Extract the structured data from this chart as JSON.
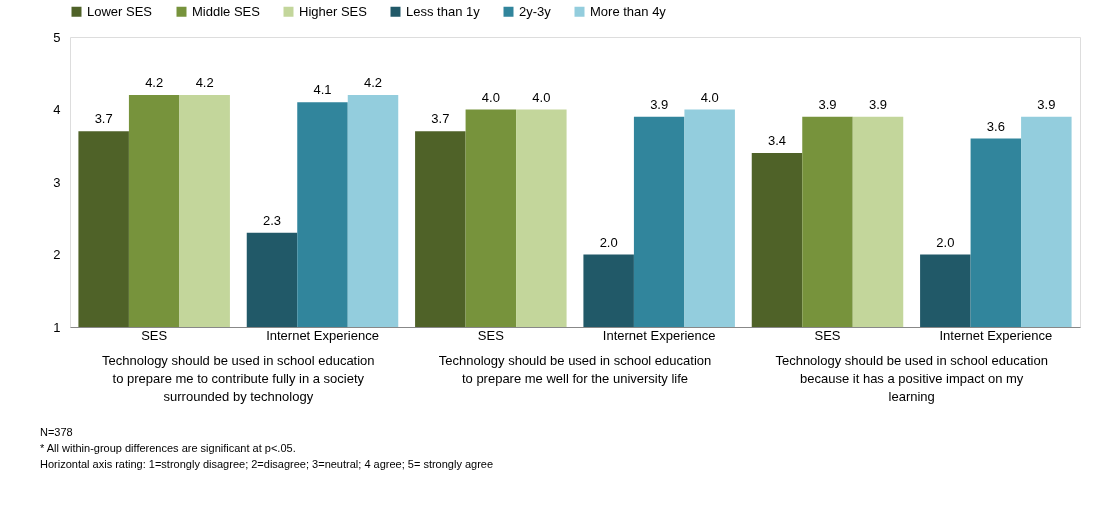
{
  "chart_data": {
    "type": "bar",
    "categories": [
      "SES",
      "Internet Experience",
      "SES",
      "Internet Experience",
      "SES",
      "Internet Experience"
    ],
    "series": [
      {
        "name": "Lower SES",
        "color": "#4f6228",
        "values": [
          3.7,
          null,
          3.7,
          null,
          3.4,
          null
        ],
        "value_labels": [
          "3.7",
          null,
          "3.7",
          null,
          "3.4",
          null
        ]
      },
      {
        "name": "Middle SES",
        "color": "#77933c",
        "values": [
          4.2,
          null,
          4.0,
          null,
          3.9,
          null
        ],
        "value_labels": [
          "4.2",
          null,
          "4.0",
          null,
          "3.9",
          null
        ]
      },
      {
        "name": "Higher SES",
        "color": "#c3d69b",
        "values": [
          4.2,
          null,
          4.0,
          null,
          3.9,
          null
        ],
        "value_labels": [
          "4.2",
          null,
          "4.0",
          null,
          "3.9",
          null
        ]
      },
      {
        "name": "Less than 1y",
        "color": "#215968",
        "values": [
          null,
          2.3,
          null,
          2.0,
          null,
          2.0
        ],
        "value_labels": [
          null,
          "2.3",
          null,
          "2.0",
          null,
          "2.0"
        ]
      },
      {
        "name": "2y-3y",
        "color": "#31859c",
        "values": [
          null,
          4.1,
          null,
          3.9,
          null,
          3.6
        ],
        "value_labels": [
          null,
          "4.1",
          null,
          "3.9",
          null,
          "3.6"
        ]
      },
      {
        "name": "More than 4y",
        "color": "#93cddd",
        "values": [
          null,
          4.2,
          null,
          4.0,
          null,
          3.9
        ],
        "value_labels": [
          null,
          "4.2",
          null,
          "4.0",
          null,
          "3.9"
        ]
      }
    ],
    "ylim": [
      1,
      5
    ],
    "yticks": [
      1,
      2,
      3,
      4,
      5
    ],
    "grid": false,
    "legend": "top",
    "annotations": [
      "Technology should be used in school education to prepare me to contribute fully in a society surrounded by technology",
      "Technology should be used in school education to prepare me well for the university life",
      "Technology should be used in school education because it has a positive impact on my learning",
      "N=378",
      "* All within-group differences are significant at p<.05.",
      "Horizontal axis rating: 1=strongly disagree; 2=disagree; 3=neutral; 4 agree; 5= strongly agree"
    ]
  }
}
